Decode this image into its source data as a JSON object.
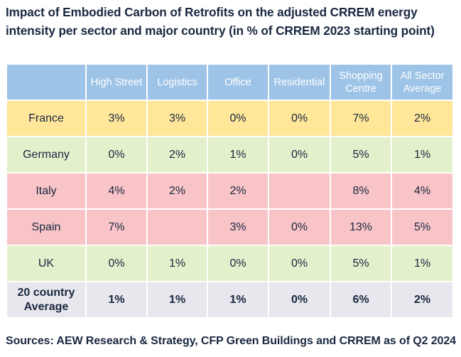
{
  "title": "Impact of Embodied Carbon of Retrofits on the adjusted CRREM energy intensity per sector and major country (in % of CRREM 2023 starting point)",
  "source": "Sources: AEW Research & Strategy, CFP Green Buildings and CRREM as of Q2 2024",
  "colors": {
    "header": "#9dc3e6",
    "france": "#ffe699",
    "green": "#e2f0cb",
    "pink": "#f8c4c8",
    "summary": "#e7e7ed"
  },
  "table": {
    "headers": [
      "",
      "High Street",
      "Logistics",
      "Office",
      "Residential",
      "Shopping Centre",
      "All Sector Average"
    ],
    "rows": [
      {
        "country": "France",
        "color": "#ffe699",
        "values": [
          "3%",
          "3%",
          "0%",
          "0%",
          "7%",
          "2%"
        ]
      },
      {
        "country": "Germany",
        "color": "#e2f0cb",
        "values": [
          "0%",
          "2%",
          "1%",
          "0%",
          "5%",
          "1%"
        ]
      },
      {
        "country": "Italy",
        "color": "#f8c4c8",
        "values": [
          "4%",
          "2%",
          "2%",
          "",
          "8%",
          "4%"
        ]
      },
      {
        "country": "Spain",
        "color": "#f8c4c8",
        "values": [
          "7%",
          "",
          "3%",
          "0%",
          "13%",
          "5%"
        ]
      },
      {
        "country": "UK",
        "color": "#e2f0cb",
        "values": [
          "0%",
          "1%",
          "0%",
          "0%",
          "5%",
          "1%"
        ]
      },
      {
        "country": "20 country Average",
        "color": "#e7e7ed",
        "values": [
          "1%",
          "1%",
          "1%",
          "0%",
          "6%",
          "2%"
        ],
        "summary": true
      }
    ]
  }
}
